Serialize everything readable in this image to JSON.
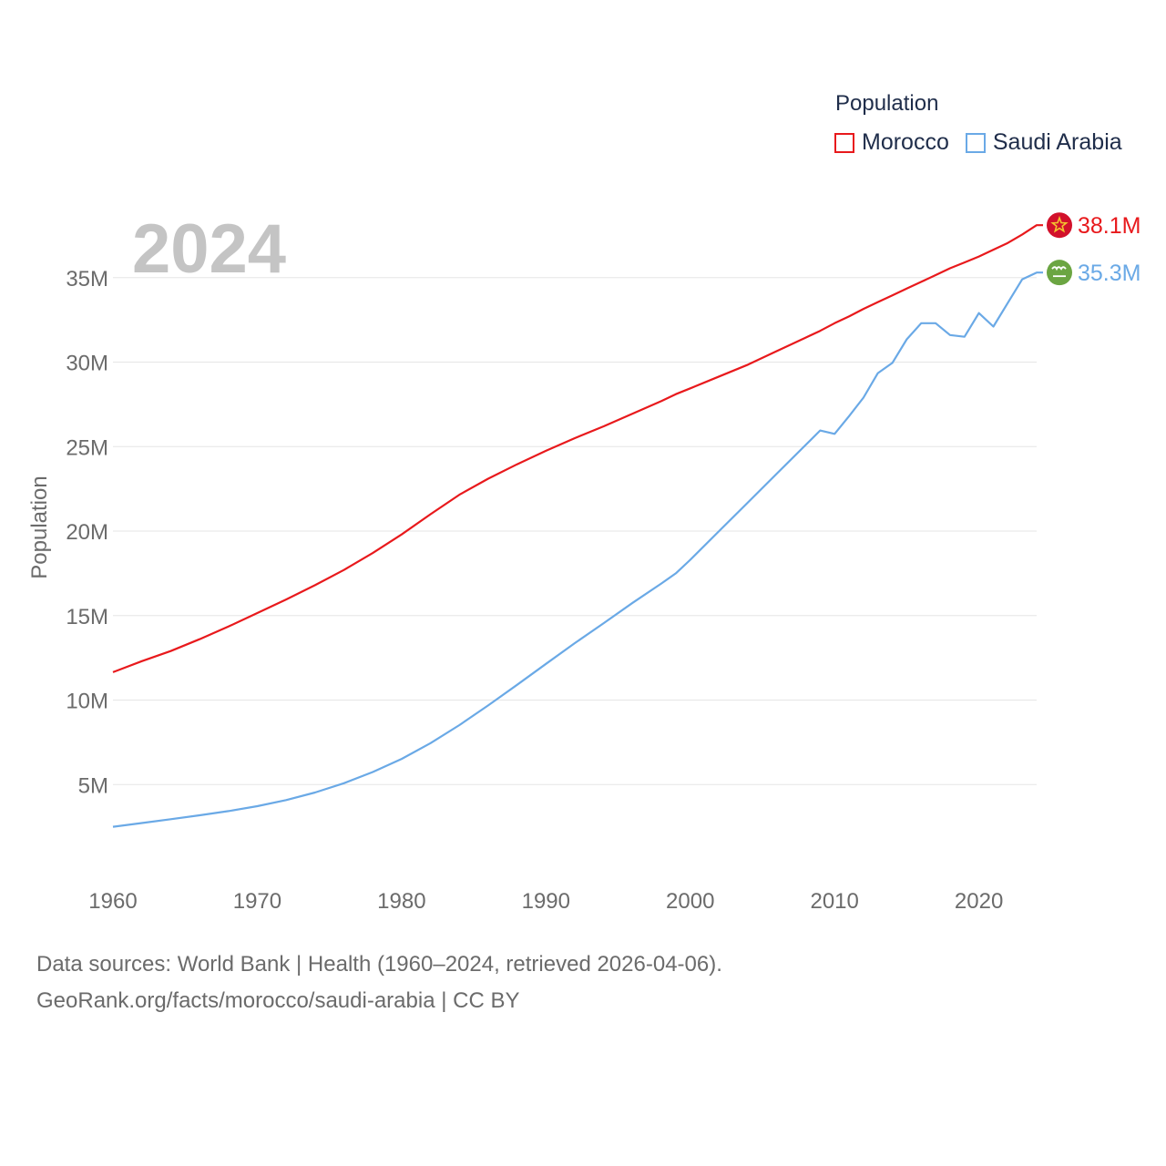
{
  "year_label": "2024",
  "legend": {
    "title": "Population",
    "items": [
      {
        "label": "Morocco",
        "color": "#e8191c"
      },
      {
        "label": "Saudi Arabia",
        "color": "#6aa9e6"
      }
    ]
  },
  "footer": {
    "line1": "Data sources: World Bank | Health (1960–2024, retrieved 2026-04-06).",
    "line2": "GeoRank.org/facts/morocco/saudi-arabia | CC BY"
  },
  "chart_data": {
    "type": "line",
    "title": "",
    "xlabel": "",
    "ylabel": "Population",
    "xlim": [
      1960,
      2024
    ],
    "ylim": [
      0,
      38500000
    ],
    "x_ticks": [
      1960,
      1970,
      1980,
      1990,
      2000,
      2010,
      2020
    ],
    "x_tick_labels": [
      "1960",
      "1970",
      "1980",
      "1990",
      "2000",
      "2010",
      "2020"
    ],
    "y_ticks": [
      5000000,
      10000000,
      15000000,
      20000000,
      25000000,
      30000000,
      35000000
    ],
    "y_tick_labels": [
      "5M",
      "10M",
      "15M",
      "20M",
      "25M",
      "30M",
      "35M"
    ],
    "grid": true,
    "x": [
      1960,
      1962,
      1964,
      1966,
      1968,
      1970,
      1972,
      1974,
      1976,
      1978,
      1980,
      1982,
      1984,
      1986,
      1988,
      1990,
      1992,
      1994,
      1996,
      1998,
      1999,
      2000,
      2002,
      2004,
      2006,
      2008,
      2009,
      2010,
      2011,
      2012,
      2013,
      2014,
      2015,
      2016,
      2017,
      2018,
      2019,
      2020,
      2021,
      2022,
      2023,
      2024
    ],
    "series": [
      {
        "name": "Morocco",
        "color": "#e8191c",
        "end_label": "38.1M",
        "values": [
          11650000,
          12300000,
          12900000,
          13600000,
          14350000,
          15150000,
          15950000,
          16800000,
          17700000,
          18700000,
          19800000,
          21000000,
          22150000,
          23100000,
          23950000,
          24750000,
          25500000,
          26200000,
          26950000,
          27700000,
          28100000,
          28450000,
          29150000,
          29850000,
          30650000,
          31450000,
          31850000,
          32300000,
          32700000,
          33150000,
          33550000,
          33950000,
          34350000,
          34750000,
          35150000,
          35550000,
          35900000,
          36250000,
          36650000,
          37050000,
          37550000,
          38100000
        ]
      },
      {
        "name": "Saudi Arabia",
        "color": "#6aa9e6",
        "end_label": "35.3M",
        "values": [
          2500000,
          2720000,
          2950000,
          3180000,
          3430000,
          3720000,
          4080000,
          4530000,
          5080000,
          5740000,
          6520000,
          7450000,
          8520000,
          9680000,
          10900000,
          12140000,
          13370000,
          14550000,
          15750000,
          16900000,
          17500000,
          18300000,
          20000000,
          21700000,
          23400000,
          25100000,
          25950000,
          25750000,
          26800000,
          27900000,
          29350000,
          29950000,
          31350000,
          32300000,
          32300000,
          31600000,
          31500000,
          32900000,
          32100000,
          33500000,
          34900000,
          35300000
        ]
      }
    ]
  }
}
